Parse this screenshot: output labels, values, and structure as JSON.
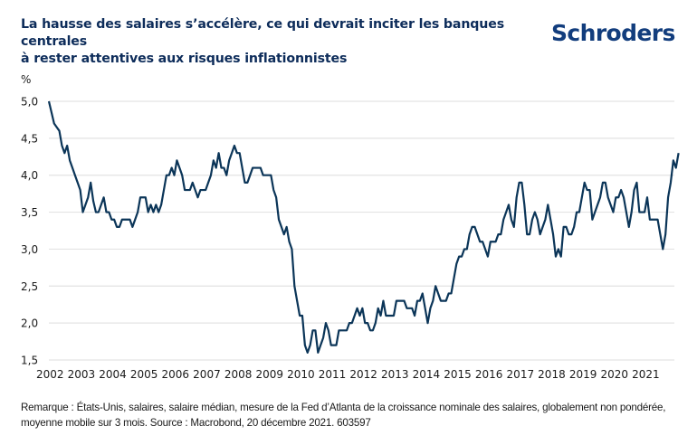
{
  "header": {
    "title_line1": "La hausse des salaires s’accélère, ce qui devrait inciter les banques centrales",
    "title_line2": "à rester attentives aux risques inflationnistes",
    "logo": "Schroders"
  },
  "footer": {
    "note_line1": "Remarque : États-Unis, salaires, salaire médian, mesure de la Fed d’Atlanta de la croissance nominale des salaires, globalement non pondérée,",
    "note_line2": "moyenne mobile sur 3 mois. Source : Macrobond, 20 décembre 2021. 603597"
  },
  "colors": {
    "line": "#0b3558",
    "grid": "#e3e3e3",
    "title": "#0d2c5a",
    "logo": "#123d7d"
  },
  "chart_data": {
    "type": "line",
    "title": "La hausse des salaires s’accélère, ce qui devrait inciter les banques centrales à rester attentives aux risques inflationnistes",
    "ylabel": "%",
    "xlabel": "",
    "ylim": [
      1.5,
      5.0
    ],
    "yticks": [
      "5,0",
      "4,5",
      "4,0",
      "3,5",
      "3,0",
      "2,5",
      "2,0",
      "1,5"
    ],
    "ytick_values": [
      5.0,
      4.5,
      4.0,
      3.5,
      3.0,
      2.5,
      2.0,
      1.5
    ],
    "xticks": [
      "2002",
      "2003",
      "2004",
      "2005",
      "2006",
      "2007",
      "2008",
      "2009",
      "2010",
      "2011",
      "2012",
      "2013",
      "2014",
      "2015",
      "2016",
      "2017",
      "2018",
      "2019",
      "2020",
      "2021"
    ],
    "xlim": [
      2002.0,
      2021.95
    ],
    "grid": "horizontal",
    "legend": "none",
    "series": [
      {
        "name": "Croissance nominale des salaires (médiane, moyenne mobile 3 mois)",
        "start": "2002-01",
        "frequency": "monthly",
        "values": [
          5.0,
          4.85,
          4.7,
          4.65,
          4.6,
          4.4,
          4.3,
          4.4,
          4.2,
          4.1,
          4.0,
          3.9,
          3.8,
          3.5,
          3.6,
          3.7,
          3.9,
          3.65,
          3.5,
          3.5,
          3.6,
          3.7,
          3.5,
          3.5,
          3.4,
          3.4,
          3.3,
          3.3,
          3.4,
          3.4,
          3.4,
          3.4,
          3.3,
          3.4,
          3.5,
          3.7,
          3.7,
          3.7,
          3.5,
          3.6,
          3.5,
          3.6,
          3.5,
          3.6,
          3.8,
          4.0,
          4.0,
          4.1,
          4.0,
          4.2,
          4.1,
          4.0,
          3.8,
          3.8,
          3.8,
          3.9,
          3.8,
          3.7,
          3.8,
          3.8,
          3.8,
          3.9,
          4.0,
          4.2,
          4.1,
          4.3,
          4.1,
          4.1,
          4.0,
          4.2,
          4.3,
          4.4,
          4.3,
          4.3,
          4.1,
          3.9,
          3.9,
          4.0,
          4.1,
          4.1,
          4.1,
          4.1,
          4.0,
          4.0,
          4.0,
          4.0,
          3.8,
          3.7,
          3.4,
          3.3,
          3.2,
          3.3,
          3.1,
          3.0,
          2.5,
          2.3,
          2.1,
          2.1,
          1.7,
          1.6,
          1.7,
          1.9,
          1.9,
          1.6,
          1.7,
          1.8,
          2.0,
          1.9,
          1.7,
          1.7,
          1.7,
          1.9,
          1.9,
          1.9,
          1.9,
          2.0,
          2.0,
          2.1,
          2.2,
          2.1,
          2.2,
          2.0,
          2.0,
          1.9,
          1.9,
          2.0,
          2.2,
          2.1,
          2.3,
          2.1,
          2.1,
          2.1,
          2.1,
          2.3,
          2.3,
          2.3,
          2.3,
          2.2,
          2.2,
          2.2,
          2.1,
          2.3,
          2.3,
          2.4,
          2.2,
          2.0,
          2.2,
          2.3,
          2.5,
          2.4,
          2.3,
          2.3,
          2.3,
          2.4,
          2.4,
          2.6,
          2.8,
          2.9,
          2.9,
          3.0,
          3.0,
          3.2,
          3.3,
          3.3,
          3.2,
          3.1,
          3.1,
          3.0,
          2.9,
          3.1,
          3.1,
          3.1,
          3.2,
          3.2,
          3.4,
          3.5,
          3.6,
          3.4,
          3.3,
          3.7,
          3.9,
          3.9,
          3.6,
          3.2,
          3.2,
          3.4,
          3.5,
          3.4,
          3.2,
          3.3,
          3.4,
          3.6,
          3.4,
          3.2,
          2.9,
          3.0,
          2.9,
          3.3,
          3.3,
          3.2,
          3.2,
          3.3,
          3.5,
          3.5,
          3.7,
          3.9,
          3.8,
          3.8,
          3.4,
          3.5,
          3.6,
          3.7,
          3.9,
          3.9,
          3.7,
          3.6,
          3.5,
          3.7,
          3.7,
          3.8,
          3.7,
          3.5,
          3.3,
          3.5,
          3.8,
          3.9,
          3.5,
          3.5,
          3.5,
          3.7,
          3.4,
          3.4,
          3.4,
          3.4,
          3.2,
          3.0,
          3.2,
          3.7,
          3.9,
          4.2,
          4.1,
          4.3
        ]
      }
    ]
  }
}
